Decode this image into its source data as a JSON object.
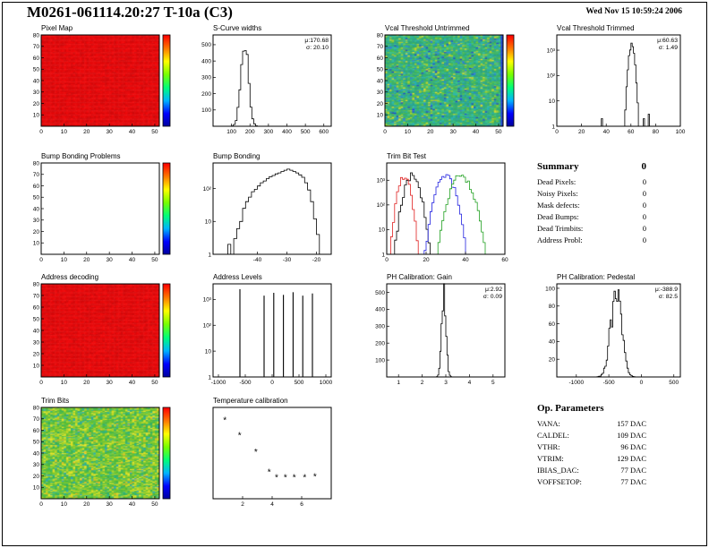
{
  "header": {
    "title": "M0261-061114.20:27 T-10a (C3)",
    "timestamp": "Wed Nov 15 10:59:24 2006"
  },
  "summary": {
    "title": "Summary",
    "total": "0",
    "rows": [
      {
        "label": "Dead Pixels:",
        "value": "0"
      },
      {
        "label": "Noisy Pixels:",
        "value": "0"
      },
      {
        "label": "Mask defects:",
        "value": "0"
      },
      {
        "label": "Dead Bumps:",
        "value": "0"
      },
      {
        "label": "Dead Trimbits:",
        "value": "0"
      },
      {
        "label": "Address Probl:",
        "value": "0"
      }
    ]
  },
  "op_parameters": {
    "title": "Op. Parameters",
    "rows": [
      {
        "label": "VANA:",
        "value": "157 DAC"
      },
      {
        "label": "CALDEL:",
        "value": "109 DAC"
      },
      {
        "label": "VTHR:",
        "value": "96 DAC"
      },
      {
        "label": "VTRIM:",
        "value": "129 DAC"
      },
      {
        "label": "IBIAS_DAC:",
        "value": "77 DAC"
      },
      {
        "label": "VOFFSETOP:",
        "value": "77 DAC"
      }
    ]
  },
  "style": {
    "colorbar": [
      "#00009a",
      "#0000ff",
      "#00b4ff",
      "#00ff78",
      "#78ff00",
      "#ffff00",
      "#ff7800",
      "#ff0000"
    ],
    "heatmap_red": "#f20b0d"
  },
  "chart_data": [
    {
      "title": "Pixel Map",
      "type": "heatmap",
      "fill": "solid",
      "base_color": "#f20b0d",
      "colorbar": true,
      "x_range": [
        0,
        52
      ],
      "xticks": [
        0,
        10,
        20,
        30,
        40,
        50
      ],
      "y_range": [
        0,
        80
      ],
      "yticks": [
        10,
        20,
        30,
        40,
        50,
        60,
        70,
        80
      ]
    },
    {
      "title": "S-Curve widths",
      "type": "hist",
      "stats": {
        "mu_label": "μ:170.68",
        "sigma_label": "σ: 20.10"
      },
      "gauss": {
        "mu": 170.68,
        "sigma": 20.1,
        "peak": 520
      },
      "jitter": 0.12,
      "bin_width": 10,
      "x_range": [
        0,
        640
      ],
      "xticks": [
        100,
        200,
        300,
        400,
        500,
        600
      ],
      "y_scale": "linear",
      "y_range": [
        0,
        560
      ],
      "yticks": [
        100,
        200,
        300,
        400,
        500
      ]
    },
    {
      "title": "Vcal Threshold Untrimmed",
      "type": "heatmap",
      "fill": "noise",
      "colorbar": true,
      "right_edge_color": "#2244cc",
      "palette": [
        [
          "#2fa877",
          22
        ],
        [
          "#2aa394",
          16
        ],
        [
          "#3cb465",
          16
        ],
        [
          "#27b0b0",
          10
        ],
        [
          "#54bd4a",
          9
        ],
        [
          "#37c18d",
          9
        ],
        [
          "#7cc738",
          6
        ],
        [
          "#b6d02c",
          4
        ],
        [
          "#2f7fd6",
          4
        ],
        [
          "#e6de28",
          2
        ],
        [
          "#2244cc",
          2
        ]
      ],
      "x_range": [
        0,
        52
      ],
      "xticks": [
        0,
        10,
        20,
        30,
        40,
        50
      ],
      "y_range": [
        0,
        80
      ],
      "yticks": [
        10,
        20,
        30,
        40,
        50,
        60,
        70,
        80
      ]
    },
    {
      "title": "Vcal Threshold Trimmed",
      "type": "hist",
      "stats": {
        "mu_label": "μ:60.63",
        "sigma_label": "σ: 1.49"
      },
      "gauss": {
        "mu": 60.63,
        "sigma": 1.49,
        "peak": 1600
      },
      "jitter": 0.2,
      "bin_width": 1,
      "extra_bins": [
        [
          36,
          2
        ],
        [
          40,
          1
        ],
        [
          44,
          1
        ],
        [
          70,
          2
        ],
        [
          74,
          3
        ],
        [
          78,
          1
        ]
      ],
      "x_range": [
        0,
        100
      ],
      "xticks": [
        0,
        20,
        40,
        60,
        80,
        100
      ],
      "y_scale": "log",
      "y_range": [
        1,
        4000
      ],
      "yticks": [
        1,
        10,
        100,
        1000
      ],
      "ytick_labels": [
        "1",
        "10",
        "10²",
        "10³"
      ]
    },
    {
      "title": "Bump Bonding Problems",
      "type": "heatmap",
      "fill": "empty",
      "colorbar": true,
      "x_range": [
        0,
        52
      ],
      "xticks": [
        0,
        10,
        20,
        30,
        40,
        50
      ],
      "y_range": [
        0,
        80
      ],
      "yticks": [
        10,
        20,
        30,
        40,
        50,
        60,
        70,
        80
      ]
    },
    {
      "title": "Bump Bonding",
      "type": "hist",
      "bins_x0": -54,
      "bin_width": 1,
      "bins": [
        0,
        0,
        1,
        0,
        2,
        1,
        3,
        6,
        10,
        25,
        40,
        55,
        80,
        95,
        120,
        150,
        170,
        200,
        230,
        250,
        280,
        300,
        330,
        360,
        390,
        360,
        330,
        300,
        260,
        220,
        150,
        90,
        40,
        12,
        4,
        1
      ],
      "x_range": [
        -55,
        -15
      ],
      "xticks": [
        -40,
        -30,
        -20
      ],
      "y_scale": "log",
      "y_range": [
        1,
        600
      ],
      "yticks": [
        1,
        10,
        100
      ],
      "ytick_labels": [
        "1",
        "10",
        "10²"
      ]
    },
    {
      "title": "Trim Bit Test",
      "type": "multihist",
      "bin_width": 1,
      "jitter": 0.3,
      "series": [
        {
          "color": "#000000",
          "gauss": {
            "mu": 13,
            "sigma": 2.4,
            "peak": 1600
          }
        },
        {
          "color": "#e02020",
          "gauss": {
            "mu": 9,
            "sigma": 1.9,
            "peak": 1500
          }
        },
        {
          "color": "#2020e0",
          "gauss": {
            "mu": 30,
            "sigma": 2.8,
            "peak": 1500
          }
        },
        {
          "color": "#20a020",
          "gauss": {
            "mu": 38,
            "sigma": 3.2,
            "peak": 1600
          }
        }
      ],
      "x_range": [
        0,
        60
      ],
      "xticks": [
        0,
        20,
        40,
        60
      ],
      "y_scale": "log",
      "y_range": [
        1,
        5000
      ],
      "yticks": [
        1,
        10,
        100,
        1000
      ],
      "ytick_labels": [
        "1",
        "10",
        "10²",
        "10³"
      ]
    },
    {
      "title": "Address decoding",
      "type": "heatmap",
      "fill": "solid",
      "base_color": "#f20b0d",
      "colorbar": true,
      "x_range": [
        0,
        52
      ],
      "xticks": [
        0,
        10,
        20,
        30,
        40,
        50
      ],
      "y_range": [
        0,
        80
      ],
      "yticks": [
        10,
        20,
        30,
        40,
        50,
        60,
        70,
        80
      ]
    },
    {
      "title": "Address Levels",
      "type": "spikes",
      "spikes": [
        [
          -600,
          2500
        ],
        [
          -150,
          1400
        ],
        [
          30,
          1800
        ],
        [
          210,
          1500
        ],
        [
          390,
          1900
        ],
        [
          570,
          1400
        ],
        [
          750,
          1700
        ]
      ],
      "x_range": [
        -1100,
        1100
      ],
      "xticks": [
        -1000,
        -500,
        0,
        500,
        1000
      ],
      "y_scale": "log",
      "y_range": [
        1,
        4000
      ],
      "yticks": [
        1,
        10,
        100,
        1000
      ],
      "ytick_labels": [
        "1",
        "10",
        "10²",
        "10³"
      ]
    },
    {
      "title": "PH Calibration: Gain",
      "type": "hist",
      "stats": {
        "mu_label": "μ:2.92",
        "sigma_label": "σ: 0.09"
      },
      "gauss": {
        "mu": 2.92,
        "sigma": 0.09,
        "peak": 500
      },
      "jitter": 0.15,
      "bin_width": 0.05,
      "x_range": [
        0.5,
        5.5
      ],
      "xticks": [
        1,
        2,
        3,
        4,
        5
      ],
      "y_scale": "linear",
      "y_range": [
        0,
        550
      ],
      "yticks": [
        100,
        200,
        300,
        400,
        500
      ]
    },
    {
      "title": "PH Calibration: Pedestal",
      "type": "hist",
      "stats": {
        "mu_label": "μ:-388.9",
        "sigma_label": "σ: 82.5"
      },
      "gauss": {
        "mu": -388.9,
        "sigma": 82.5,
        "peak": 95
      },
      "jitter": 0.25,
      "bin_width": 20,
      "x_range": [
        -1300,
        600
      ],
      "xticks": [
        -1000,
        -500,
        0,
        500
      ],
      "y_scale": "linear",
      "y_range": [
        0,
        105
      ],
      "yticks": [
        20,
        40,
        60,
        80,
        100
      ]
    },
    {
      "title": "Trim Bits",
      "type": "heatmap",
      "fill": "noise",
      "colorbar": true,
      "palette": [
        [
          "#4cba3e",
          20
        ],
        [
          "#6fc431",
          18
        ],
        [
          "#95cd2b",
          14
        ],
        [
          "#b8d626",
          10
        ],
        [
          "#35b060",
          10
        ],
        [
          "#d9de24",
          8
        ],
        [
          "#2bb38d",
          6
        ],
        [
          "#e9e52e",
          5
        ],
        [
          "#58c764",
          4
        ],
        [
          "#28a5c4",
          3
        ],
        [
          "#f0b320",
          2
        ]
      ],
      "x_range": [
        0,
        52
      ],
      "xticks": [
        0,
        10,
        20,
        30,
        40,
        50
      ],
      "y_range": [
        0,
        80
      ],
      "yticks": [
        10,
        20,
        30,
        40,
        50,
        60,
        70,
        80
      ]
    },
    {
      "title": "Temperature calibration",
      "type": "scatter",
      "marker": "*",
      "points": [
        [
          0.8,
          8.6
        ],
        [
          1.8,
          6.9
        ],
        [
          2.9,
          5.1
        ],
        [
          3.8,
          2.9
        ],
        [
          4.3,
          2.3
        ],
        [
          4.9,
          2.3
        ],
        [
          5.5,
          2.3
        ],
        [
          6.2,
          2.3
        ],
        [
          6.9,
          2.4
        ]
      ],
      "x_range": [
        0,
        8
      ],
      "xticks": [
        2,
        4,
        6
      ],
      "y_scale": "linear",
      "y_range": [
        0,
        10
      ],
      "yticks": []
    }
  ]
}
